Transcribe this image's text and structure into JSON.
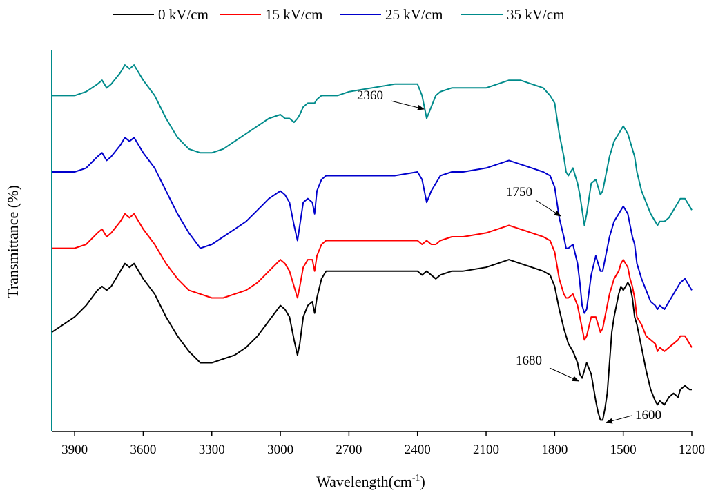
{
  "chart_data": {
    "type": "line",
    "title": "",
    "xlabel": "Wavelength(cm",
    "xlabel_sup": "-1",
    "xlabel_close": ")",
    "ylabel": "Transmittance (%)",
    "xlim": [
      4000,
      1200
    ],
    "x_reversed": true,
    "ylim": [
      0,
      100
    ],
    "y_ticks_visible": false,
    "grid": false,
    "legend_position": "top",
    "x_ticks": [
      3900,
      3600,
      3300,
      3000,
      2700,
      2400,
      2100,
      1800,
      1500,
      1200
    ],
    "x_tick_labels": [
      "3900",
      "3600",
      "3300",
      "3000",
      "2700",
      "2400",
      "2100",
      "1800",
      "1500",
      "1200"
    ],
    "series": [
      {
        "name": "0 kV/cm",
        "color": "#000000",
        "x": [
          4000,
          3950,
          3900,
          3850,
          3800,
          3780,
          3760,
          3740,
          3700,
          3680,
          3660,
          3640,
          3620,
          3600,
          3550,
          3500,
          3450,
          3400,
          3350,
          3300,
          3250,
          3200,
          3150,
          3100,
          3050,
          3000,
          2980,
          2960,
          2940,
          2925,
          2915,
          2900,
          2880,
          2860,
          2850,
          2840,
          2820,
          2800,
          2750,
          2700,
          2600,
          2500,
          2400,
          2380,
          2360,
          2340,
          2320,
          2300,
          2250,
          2200,
          2100,
          2050,
          2000,
          1950,
          1900,
          1850,
          1820,
          1800,
          1780,
          1760,
          1740,
          1720,
          1700,
          1690,
          1680,
          1670,
          1660,
          1640,
          1620,
          1610,
          1600,
          1590,
          1580,
          1570,
          1560,
          1550,
          1540,
          1520,
          1510,
          1500,
          1490,
          1480,
          1470,
          1460,
          1450,
          1440,
          1420,
          1400,
          1380,
          1360,
          1350,
          1340,
          1320,
          1300,
          1280,
          1260,
          1250,
          1230,
          1210,
          1200
        ],
        "y": [
          26,
          28,
          30,
          33,
          37,
          38,
          37,
          38,
          42,
          44,
          43,
          44,
          42,
          40,
          36,
          30,
          25,
          21,
          18,
          18,
          19,
          20,
          22,
          25,
          29,
          33,
          32,
          30,
          24,
          20,
          23,
          30,
          33,
          34,
          31,
          35,
          40,
          42,
          42,
          42,
          42,
          42,
          42,
          41,
          42,
          41,
          40,
          41,
          42,
          42,
          43,
          44,
          45,
          44,
          43,
          42,
          41,
          38,
          32,
          27,
          23,
          21,
          18,
          15,
          14,
          16,
          18,
          15,
          8,
          5,
          3,
          3,
          6,
          10,
          18,
          26,
          30,
          36,
          38,
          37,
          38,
          39,
          38,
          35,
          30,
          28,
          22,
          16,
          11,
          8,
          7,
          8,
          7,
          9,
          10,
          9,
          11,
          12,
          11,
          11
        ]
      },
      {
        "name": "15 kV/cm",
        "color": "#ff0000",
        "x": [
          4000,
          3950,
          3900,
          3850,
          3800,
          3780,
          3760,
          3740,
          3700,
          3680,
          3660,
          3640,
          3620,
          3600,
          3550,
          3500,
          3450,
          3400,
          3350,
          3300,
          3250,
          3200,
          3150,
          3100,
          3050,
          3000,
          2980,
          2960,
          2940,
          2925,
          2915,
          2900,
          2880,
          2860,
          2850,
          2840,
          2820,
          2800,
          2750,
          2700,
          2600,
          2500,
          2400,
          2380,
          2360,
          2340,
          2320,
          2300,
          2250,
          2200,
          2100,
          2050,
          2000,
          1950,
          1900,
          1850,
          1820,
          1800,
          1780,
          1760,
          1750,
          1740,
          1720,
          1700,
          1690,
          1680,
          1670,
          1660,
          1640,
          1620,
          1610,
          1600,
          1590,
          1580,
          1570,
          1560,
          1550,
          1540,
          1520,
          1510,
          1500,
          1490,
          1480,
          1470,
          1460,
          1450,
          1440,
          1420,
          1400,
          1380,
          1360,
          1350,
          1340,
          1320,
          1300,
          1280,
          1260,
          1250,
          1230,
          1210,
          1200
        ],
        "y": [
          48,
          48,
          48,
          49,
          52,
          53,
          51,
          52,
          55,
          57,
          56,
          57,
          55,
          53,
          49,
          44,
          40,
          37,
          36,
          35,
          35,
          36,
          37,
          39,
          42,
          45,
          44,
          42,
          38,
          35,
          38,
          43,
          45,
          45,
          42,
          46,
          49,
          50,
          50,
          50,
          50,
          50,
          50,
          49,
          50,
          49,
          49,
          50,
          51,
          51,
          52,
          53,
          54,
          53,
          52,
          51,
          50,
          47,
          40,
          36,
          35,
          35,
          36,
          33,
          30,
          27,
          24,
          25,
          30,
          30,
          28,
          26,
          27,
          30,
          33,
          36,
          38,
          40,
          42,
          44,
          45,
          44,
          43,
          40,
          38,
          35,
          30,
          28,
          25,
          24,
          23,
          21,
          22,
          21,
          22,
          23,
          24,
          25,
          25,
          23,
          22
        ]
      },
      {
        "name": "25 kV/cm",
        "color": "#0000cc",
        "x": [
          4000,
          3950,
          3900,
          3850,
          3800,
          3780,
          3760,
          3740,
          3700,
          3680,
          3660,
          3640,
          3620,
          3600,
          3550,
          3500,
          3450,
          3400,
          3350,
          3300,
          3250,
          3200,
          3150,
          3100,
          3050,
          3000,
          2980,
          2960,
          2940,
          2925,
          2915,
          2900,
          2880,
          2860,
          2850,
          2840,
          2820,
          2800,
          2750,
          2700,
          2600,
          2500,
          2400,
          2380,
          2360,
          2340,
          2320,
          2300,
          2250,
          2200,
          2100,
          2050,
          2000,
          1950,
          1900,
          1850,
          1820,
          1800,
          1780,
          1760,
          1750,
          1740,
          1720,
          1700,
          1690,
          1680,
          1670,
          1660,
          1640,
          1620,
          1610,
          1600,
          1590,
          1580,
          1570,
          1560,
          1550,
          1540,
          1520,
          1510,
          1500,
          1490,
          1480,
          1470,
          1460,
          1450,
          1440,
          1420,
          1400,
          1380,
          1360,
          1350,
          1340,
          1320,
          1300,
          1280,
          1260,
          1250,
          1230,
          1210,
          1200
        ],
        "y": [
          68,
          68,
          68,
          69,
          72,
          73,
          71,
          72,
          75,
          77,
          76,
          77,
          75,
          73,
          69,
          63,
          57,
          52,
          48,
          49,
          51,
          53,
          55,
          58,
          61,
          63,
          62,
          60,
          54,
          50,
          54,
          60,
          61,
          60,
          57,
          63,
          66,
          67,
          67,
          67,
          67,
          67,
          68,
          66,
          60,
          63,
          65,
          67,
          68,
          68,
          69,
          70,
          71,
          70,
          69,
          68,
          67,
          64,
          56,
          51,
          48,
          48,
          49,
          44,
          39,
          33,
          31,
          32,
          41,
          46,
          44,
          42,
          42,
          45,
          48,
          51,
          53,
          55,
          57,
          58,
          59,
          58,
          57,
          54,
          51,
          49,
          44,
          40,
          37,
          34,
          33,
          32,
          33,
          32,
          34,
          36,
          38,
          39,
          40,
          38,
          37
        ]
      },
      {
        "name": "35 kV/cm",
        "color": "#008b8b",
        "x": [
          4000,
          3950,
          3900,
          3850,
          3800,
          3780,
          3760,
          3740,
          3700,
          3680,
          3660,
          3640,
          3620,
          3600,
          3550,
          3500,
          3450,
          3400,
          3350,
          3300,
          3250,
          3200,
          3150,
          3100,
          3050,
          3000,
          2980,
          2960,
          2940,
          2925,
          2915,
          2900,
          2880,
          2860,
          2850,
          2840,
          2820,
          2800,
          2750,
          2700,
          2600,
          2500,
          2400,
          2380,
          2360,
          2340,
          2320,
          2300,
          2250,
          2200,
          2100,
          2050,
          2000,
          1950,
          1900,
          1850,
          1820,
          1800,
          1780,
          1760,
          1750,
          1740,
          1720,
          1700,
          1690,
          1680,
          1670,
          1660,
          1640,
          1620,
          1610,
          1600,
          1590,
          1580,
          1570,
          1560,
          1550,
          1540,
          1520,
          1510,
          1500,
          1490,
          1480,
          1470,
          1460,
          1450,
          1440,
          1420,
          1400,
          1380,
          1360,
          1350,
          1340,
          1320,
          1300,
          1280,
          1260,
          1250,
          1230,
          1210,
          1200
        ],
        "y": [
          88,
          88,
          88,
          89,
          91,
          92,
          90,
          91,
          94,
          96,
          95,
          96,
          94,
          92,
          88,
          82,
          77,
          74,
          73,
          73,
          74,
          76,
          78,
          80,
          82,
          83,
          82,
          82,
          81,
          82,
          83,
          85,
          86,
          86,
          86,
          87,
          88,
          88,
          88,
          89,
          90,
          91,
          91,
          88,
          82,
          85,
          88,
          89,
          90,
          90,
          90,
          91,
          92,
          92,
          91,
          90,
          88,
          86,
          78,
          72,
          68,
          67,
          69,
          65,
          62,
          58,
          54,
          57,
          65,
          66,
          64,
          62,
          63,
          66,
          69,
          72,
          74,
          76,
          78,
          79,
          80,
          79,
          78,
          76,
          74,
          72,
          68,
          63,
          60,
          57,
          55,
          54,
          55,
          55,
          56,
          58,
          60,
          61,
          61,
          59,
          58
        ]
      }
    ],
    "annotations": [
      {
        "text": "2360",
        "x": 2360
      },
      {
        "text": "1750",
        "x": 1750
      },
      {
        "text": "1680",
        "x": 1680
      },
      {
        "text": "1600",
        "x": 1600
      }
    ]
  }
}
